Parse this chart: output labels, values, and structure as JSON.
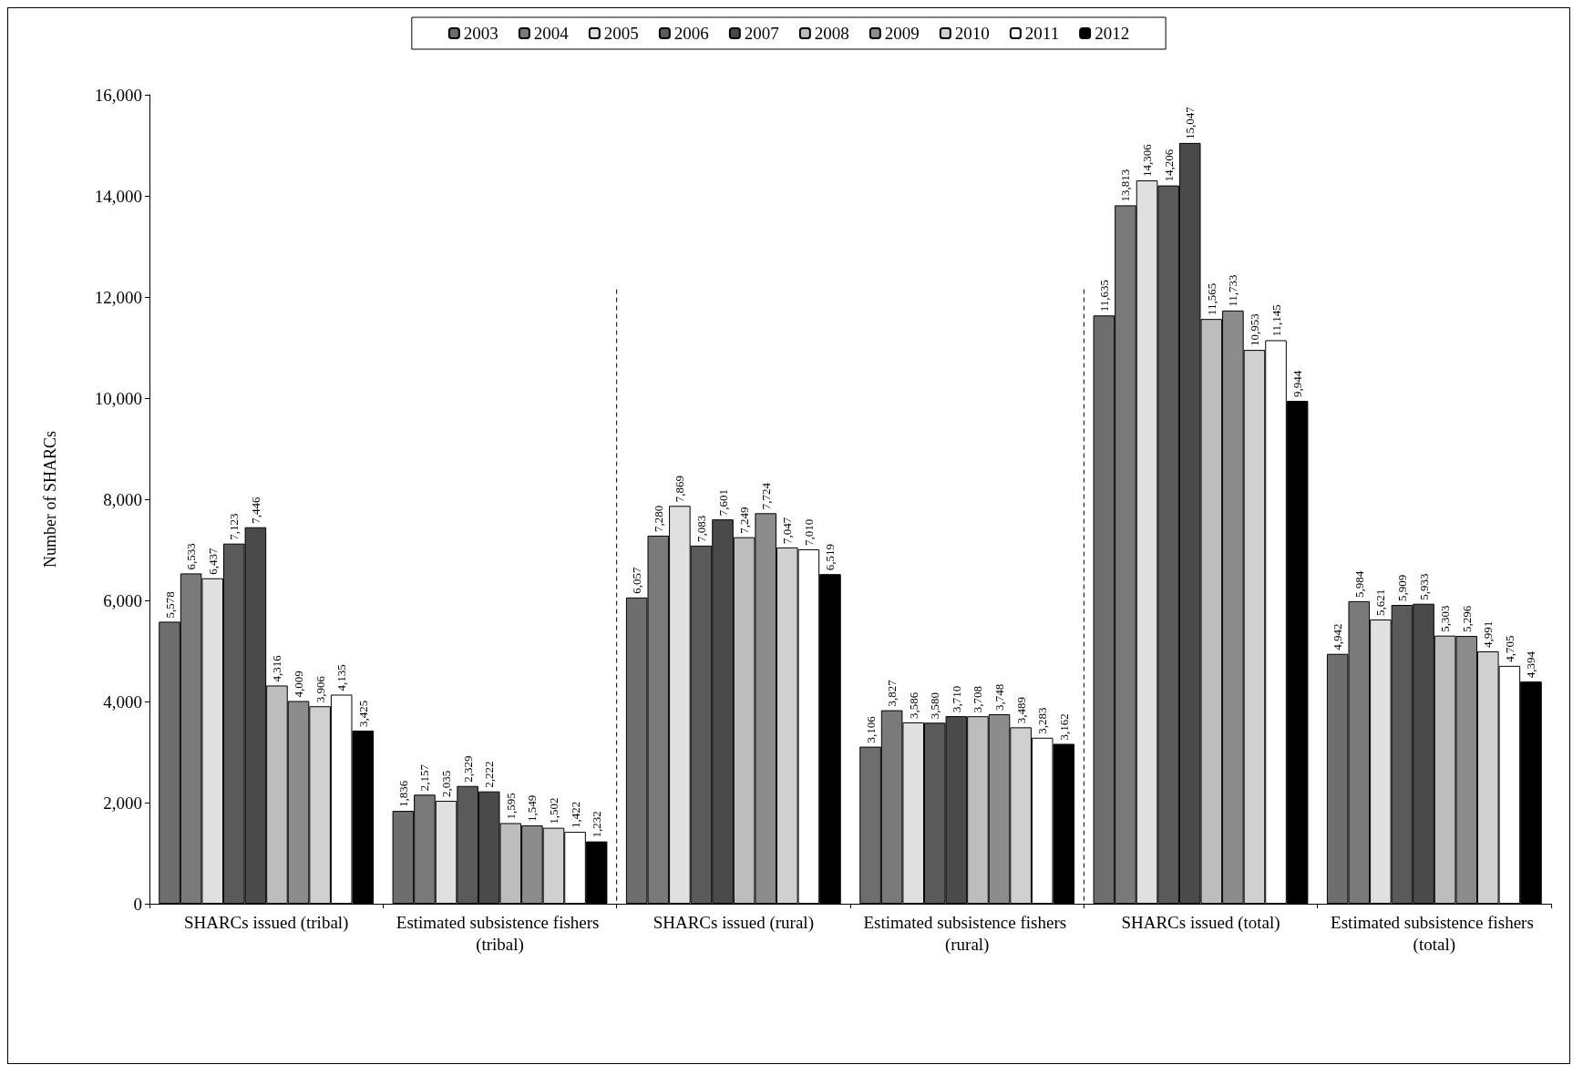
{
  "chart_data": {
    "type": "bar",
    "ylabel": "Number of SHARCs",
    "categories": [
      "SHARCs issued (tribal)",
      "Estimated subsistence fishers (tribal)",
      "SHARCs issued (rural)",
      "Estimated subsistence fishers (rural)",
      "SHARCs issued (total)",
      "Estimated subsistence fishers (total)"
    ],
    "series": [
      {
        "name": "2003",
        "color": "#6e6e6e",
        "values": [
          5578,
          1836,
          6057,
          3106,
          11635,
          4942
        ],
        "value_labels": [
          "5,578",
          "1,836",
          "6,057",
          "3,106",
          "11,635",
          "4,942"
        ]
      },
      {
        "name": "2004",
        "color": "#7a7a7a",
        "values": [
          6533,
          2157,
          7280,
          3827,
          13813,
          5984
        ],
        "value_labels": [
          "6,533",
          "2,157",
          "7,280",
          "3,827",
          "13,813",
          "5,984"
        ]
      },
      {
        "name": "2005",
        "color": "#e0e0e0",
        "values": [
          6437,
          2035,
          7869,
          3586,
          14306,
          5621
        ],
        "value_labels": [
          "6,437",
          "2,035",
          "7,869",
          "3,586",
          "14,306",
          "5,621"
        ]
      },
      {
        "name": "2006",
        "color": "#5a5a5a",
        "values": [
          7123,
          2329,
          7083,
          3580,
          14206,
          5909
        ],
        "value_labels": [
          "7,123",
          "2,329",
          "7,083",
          "3,580",
          "14,206",
          "5,909"
        ]
      },
      {
        "name": "2007",
        "color": "#4a4a4a",
        "values": [
          7446,
          2222,
          7601,
          3710,
          15047,
          5933
        ],
        "value_labels": [
          "7,446",
          "2,222",
          "7,601",
          "3,710",
          "15,047",
          "5,933"
        ]
      },
      {
        "name": "2008",
        "color": "#bdbdbd",
        "values": [
          4316,
          1595,
          7249,
          3708,
          11565,
          5303
        ],
        "value_labels": [
          "4,316",
          "1,595",
          "7,249",
          "3,708",
          "11,565",
          "5,303"
        ]
      },
      {
        "name": "2009",
        "color": "#8c8c8c",
        "values": [
          4009,
          1549,
          7724,
          3748,
          11733,
          5296
        ],
        "value_labels": [
          "4,009",
          "1,549",
          "7,724",
          "3,748",
          "11,733",
          "5,296"
        ]
      },
      {
        "name": "2010",
        "color": "#d0d0d0",
        "values": [
          3906,
          1502,
          7047,
          3489,
          10953,
          4991
        ],
        "value_labels": [
          "3,906",
          "1,502",
          "7,047",
          "3,489",
          "10,953",
          "4,991"
        ]
      },
      {
        "name": "2011",
        "color": "#ffffff",
        "values": [
          4135,
          1422,
          7010,
          3283,
          11145,
          4705
        ],
        "value_labels": [
          "4,135",
          "1,422",
          "7,010",
          "3,283",
          "11,145",
          "4,705"
        ]
      },
      {
        "name": "2012",
        "color": "#000000",
        "values": [
          3425,
          1232,
          6519,
          3162,
          9944,
          4394
        ],
        "value_labels": [
          "3,425",
          "1,232",
          "6,519",
          "3,162",
          "9,944",
          "4,394"
        ]
      }
    ],
    "ylim": [
      0,
      16000
    ],
    "yticks": [
      0,
      {
        "value": 2000,
        "label": "2,000"
      },
      {
        "value": 4000,
        "label": "4,000"
      },
      {
        "value": 6000,
        "label": "6,000"
      },
      {
        "value": 8000,
        "label": "8,000"
      },
      {
        "value": 10000,
        "label": "10,000"
      },
      {
        "value": 12000,
        "label": "12,000"
      },
      {
        "value": 14000,
        "label": "14,000"
      },
      {
        "value": 16000,
        "label": "16,000"
      }
    ],
    "legend": "top",
    "grid": false
  }
}
